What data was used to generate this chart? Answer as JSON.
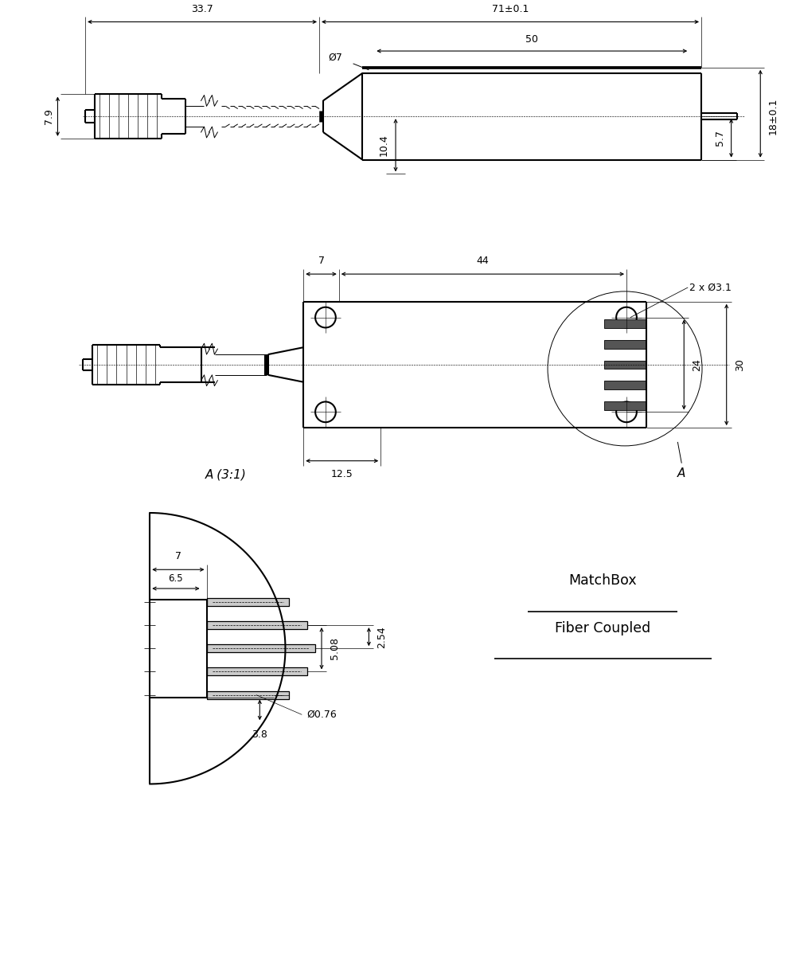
{
  "bg_color": "#ffffff",
  "line_color": "#000000",
  "line_width": 1.5,
  "thin_line": 0.7,
  "font_size": 9,
  "view1": {
    "dim_71_label": "71±0.1",
    "dim_50_label": "50",
    "dim_337_label": "33.7",
    "dim_79_label": "7.9",
    "dim_7_label": "Ø7",
    "dim_104_label": "10.4",
    "dim_18_label": "18±0.1",
    "dim_57_label": "5.7"
  },
  "view2": {
    "dim_7_label": "7",
    "dim_44_label": "44",
    "dim_2x31_label": "2 x Ø3.1",
    "dim_125_label": "12.5",
    "dim_24_label": "24",
    "dim_30_label": "30",
    "label_A": "A"
  },
  "view3": {
    "label": "A (3:1)",
    "dim_7_label": "7",
    "dim_65_label": "6.5",
    "dim_508_label": "5.08",
    "dim_254_label": "2.54",
    "dim_38_label": "3.8",
    "dim_076_label": "Ø0.76"
  },
  "matchbox_line1": "MatchBox",
  "matchbox_line2": "Fiber Coupled"
}
